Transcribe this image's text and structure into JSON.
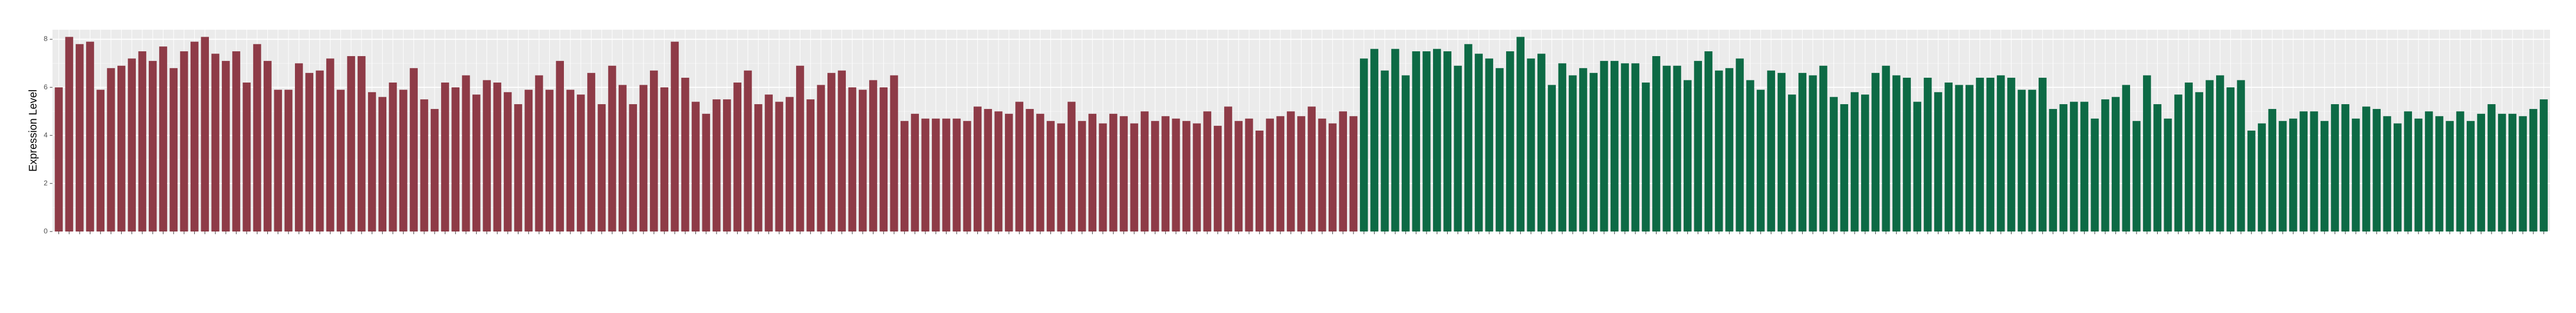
{
  "chart_data": {
    "type": "bar",
    "y_label": "Expression Level",
    "ylim": [
      0,
      8.4
    ],
    "yticks": [
      0,
      2,
      4,
      6,
      8
    ],
    "grid": true,
    "series": [
      {
        "color": "#8e3b47",
        "values": [
          6.0,
          8.1,
          7.8,
          7.9,
          5.9,
          6.8,
          6.9,
          7.2,
          7.5,
          7.1,
          7.7,
          6.8,
          7.5,
          7.9,
          8.1,
          7.4,
          7.1,
          7.5,
          6.2,
          7.8,
          7.1,
          5.9,
          5.9,
          7.0,
          6.6,
          6.7,
          7.2,
          5.9,
          7.3,
          7.3,
          5.8,
          5.6,
          6.2,
          5.9,
          6.8,
          5.5,
          5.1,
          6.2,
          6.0,
          6.5,
          5.7,
          6.3,
          6.2,
          5.8,
          5.3,
          5.9,
          6.5,
          5.9,
          7.1,
          5.9,
          5.7,
          6.6,
          5.3,
          6.9,
          6.1,
          5.3,
          6.1,
          6.7,
          6.0,
          7.9,
          6.4,
          5.4,
          4.9,
          5.5,
          5.5,
          6.2,
          6.7,
          5.3,
          5.7,
          5.4,
          5.6,
          6.9,
          5.5,
          6.1,
          6.6,
          6.7,
          6.0,
          5.9,
          6.3,
          6.0,
          6.5,
          4.6,
          4.9,
          4.7,
          4.7,
          4.7,
          4.7,
          4.6,
          5.2,
          5.1,
          5.0,
          4.9,
          5.4,
          5.1,
          4.9,
          4.6,
          4.5,
          5.4,
          4.6,
          4.9,
          4.5,
          4.9,
          4.8,
          4.5,
          5.0,
          4.6,
          4.8,
          4.7,
          4.6,
          4.5,
          5.0,
          4.4,
          5.2,
          4.6,
          4.7,
          4.2,
          4.7,
          4.8,
          5.0,
          4.8,
          5.2,
          4.7,
          4.5,
          5.0,
          4.8
        ]
      },
      {
        "color": "#0d6a45",
        "values": [
          7.2,
          7.6,
          6.7,
          7.6,
          6.5,
          7.5,
          7.5,
          7.6,
          7.5,
          6.9,
          7.8,
          7.4,
          7.2,
          6.8,
          7.5,
          8.1,
          7.2,
          7.4,
          6.1,
          7.0,
          6.5,
          6.8,
          6.6,
          7.1,
          7.1,
          7.0,
          7.0,
          6.2,
          7.3,
          6.9,
          6.9,
          6.3,
          7.1,
          7.5,
          6.7,
          6.8,
          7.2,
          6.3,
          5.9,
          6.7,
          6.6,
          5.7,
          6.6,
          6.5,
          6.9,
          5.6,
          5.3,
          5.8,
          5.7,
          6.6,
          6.9,
          6.5,
          6.4,
          5.4,
          6.4,
          5.8,
          6.2,
          6.1,
          6.1,
          6.4,
          6.4,
          6.5,
          6.4,
          5.9,
          5.9,
          6.4,
          5.1,
          5.3,
          5.4,
          5.4,
          4.7,
          5.5,
          5.6,
          6.1,
          4.6,
          6.5,
          5.3,
          4.7,
          5.7,
          6.2,
          5.8,
          6.3,
          6.5,
          6.0,
          6.3,
          4.2,
          4.5,
          5.1,
          4.6,
          4.7,
          5.0,
          5.0,
          4.6,
          5.3,
          5.3,
          4.7,
          5.2,
          5.1,
          4.8,
          4.5,
          5.0,
          4.7,
          5.0,
          4.8,
          4.6,
          5.0,
          4.6,
          4.9,
          5.3,
          4.9,
          4.9,
          4.8,
          5.1,
          5.5
        ]
      }
    ]
  }
}
